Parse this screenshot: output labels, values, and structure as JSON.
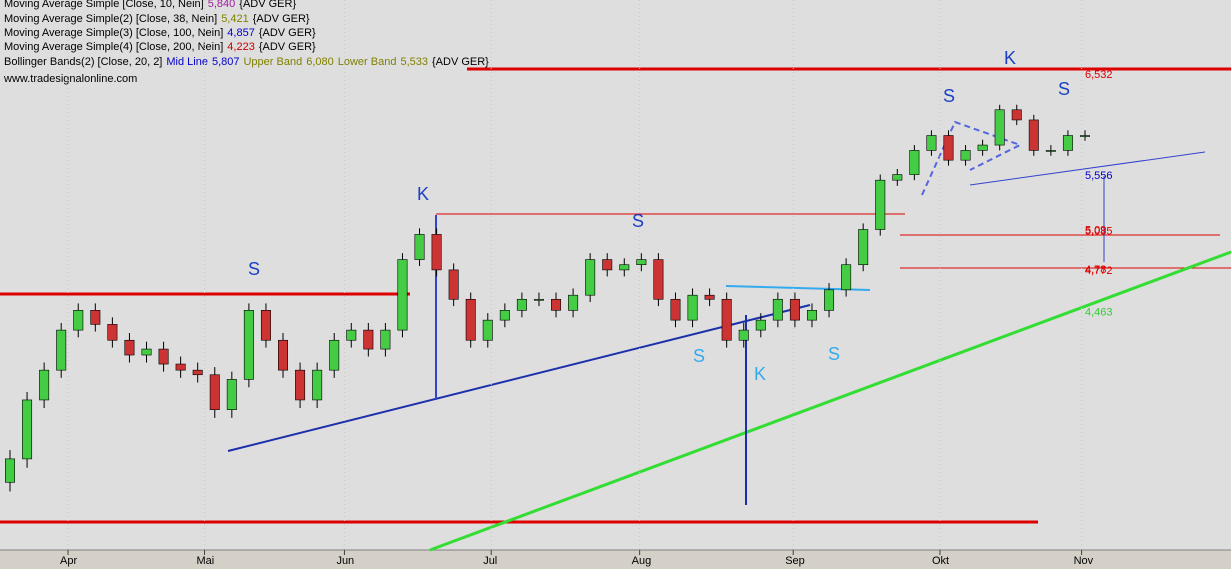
{
  "chart_data": {
    "type": "candlestick",
    "legend": [
      {
        "name": "Moving Average Simple [Close, 10, Nein]",
        "values": [
          {
            "value": 5.84,
            "label": "5,840",
            "color": "#a020a0"
          }
        ],
        "suffix": "{ADV GER}"
      },
      {
        "name": "Moving Average Simple(2) [Close, 38, Nein]",
        "values": [
          {
            "value": 5.421,
            "label": "5,421",
            "color": "#808000"
          }
        ],
        "suffix": "{ADV GER}"
      },
      {
        "name": "Moving Average Simple(3) [Close, 100, Nein]",
        "values": [
          {
            "value": 4.857,
            "label": "4,857",
            "color": "#0000cc"
          }
        ],
        "suffix": "{ADV GER}"
      },
      {
        "name": "Moving Average Simple(4) [Close, 200, Nein]",
        "values": [
          {
            "value": 4.223,
            "label": "4,223",
            "color": "#cc0000"
          }
        ],
        "suffix": "{ADV GER}"
      },
      {
        "name": "Bollinger Bands(2) [Close, 20, 2]",
        "values": [
          {
            "text": "Mid Line",
            "value": 5.807,
            "label": "5,807",
            "color": "#0000cc"
          },
          {
            "text": "Upper Band",
            "value": 6.08,
            "label": "6,080",
            "color": "#808000"
          },
          {
            "text": "Lower Band",
            "value": 5.533,
            "label": "5,533",
            "color": "#808000"
          }
        ],
        "suffix": "{ADV GER}"
      }
    ],
    "source": "www.tradesignalonline.com",
    "open": [
      3.4,
      3.53,
      3.88,
      4.07,
      4.34,
      4.48,
      4.38,
      4.27,
      4.17,
      4.21,
      4.11,
      4.07,
      4.04,
      3.82,
      4.01,
      4.48,
      4.27,
      4.07,
      3.88,
      4.07,
      4.27,
      4.34,
      4.21,
      4.34,
      4.86,
      5.06,
      4.78,
      4.56,
      4.27,
      4.41,
      4.48,
      4.56,
      4.56,
      4.48,
      4.59,
      4.86,
      4.78,
      4.82,
      4.86,
      4.56,
      4.41,
      4.59,
      4.56,
      4.27,
      4.34,
      4.41,
      4.56,
      4.41,
      4.48,
      4.63,
      4.82,
      5.1,
      5.52,
      5.57,
      5.79,
      5.93,
      5.7,
      5.79,
      5.84,
      6.18,
      6.08,
      5.79,
      5.79,
      5.93
    ],
    "high": [
      3.58,
      3.93,
      4.12,
      4.39,
      4.53,
      4.53,
      4.43,
      4.32,
      4.26,
      4.26,
      4.16,
      4.12,
      4.09,
      4.06,
      4.53,
      4.53,
      4.32,
      4.12,
      4.12,
      4.32,
      4.39,
      4.39,
      4.39,
      4.91,
      5.11,
      5.11,
      4.83,
      4.61,
      4.46,
      4.53,
      4.61,
      4.61,
      4.61,
      4.64,
      4.91,
      4.91,
      4.87,
      4.91,
      4.91,
      4.61,
      4.64,
      4.64,
      4.61,
      4.39,
      4.46,
      4.61,
      4.61,
      4.53,
      4.68,
      4.87,
      5.15,
      5.57,
      5.62,
      5.84,
      5.98,
      5.98,
      5.84,
      5.89,
      6.23,
      6.23,
      6.13,
      5.84,
      5.98,
      5.98
    ],
    "low": [
      3.35,
      3.48,
      3.83,
      4.02,
      4.29,
      4.33,
      4.22,
      4.12,
      4.12,
      4.06,
      4.02,
      3.99,
      3.77,
      3.77,
      3.96,
      4.22,
      4.02,
      3.83,
      3.83,
      4.02,
      4.22,
      4.16,
      4.16,
      4.29,
      4.81,
      4.73,
      4.51,
      4.22,
      4.22,
      4.36,
      4.43,
      4.51,
      4.43,
      4.43,
      4.54,
      4.73,
      4.73,
      4.77,
      4.51,
      4.36,
      4.36,
      4.51,
      4.22,
      4.22,
      4.29,
      4.36,
      4.36,
      4.36,
      4.43,
      4.58,
      4.77,
      5.05,
      5.47,
      5.52,
      5.74,
      5.65,
      5.65,
      5.74,
      5.79,
      6.03,
      5.74,
      5.74,
      5.74,
      5.88
    ],
    "close": [
      3.53,
      3.88,
      4.07,
      4.34,
      4.48,
      4.38,
      4.27,
      4.17,
      4.21,
      4.11,
      4.07,
      4.04,
      3.82,
      4.01,
      4.48,
      4.27,
      4.07,
      3.88,
      4.07,
      4.27,
      4.34,
      4.21,
      4.34,
      4.86,
      5.06,
      4.78,
      4.56,
      4.27,
      4.41,
      4.48,
      4.56,
      4.56,
      4.48,
      4.59,
      4.86,
      4.78,
      4.82,
      4.86,
      4.56,
      4.41,
      4.59,
      4.56,
      4.27,
      4.34,
      4.41,
      4.56,
      4.41,
      4.48,
      4.63,
      4.82,
      5.1,
      5.52,
      5.57,
      5.79,
      5.93,
      5.7,
      5.79,
      5.84,
      6.18,
      6.08,
      5.79,
      5.79,
      5.93,
      5.93
    ],
    "up_color": "#44cc44",
    "down_color": "#cc3333",
    "xlim": [
      0,
      63
    ],
    "xticks": [
      {
        "value": 3.4,
        "label": "Apr"
      },
      {
        "value": 11.4,
        "label": "Mai"
      },
      {
        "value": 19.6,
        "label": "Jun"
      },
      {
        "value": 28.2,
        "label": "Jul"
      },
      {
        "value": 36.9,
        "label": "Aug"
      },
      {
        "value": 45.9,
        "label": "Sep"
      },
      {
        "value": 54.5,
        "label": "Okt"
      },
      {
        "value": 62.8,
        "label": "Nov"
      }
    ],
    "ylim": [
      3.05,
      7.37
    ],
    "log_scale": true,
    "price_labels": [
      {
        "value": 6.532,
        "label": "6,532",
        "color": "#dd0000"
      },
      {
        "value": 5.556,
        "label": "5,556",
        "color": "#0000cc"
      },
      {
        "value": 5.09,
        "label": "5,09",
        "color": "#dd0000"
      },
      {
        "value": 5.085,
        "label": "5,085",
        "color": "#dd0000"
      },
      {
        "value": 4.78,
        "label": "4,78",
        "color": "#dd0000"
      },
      {
        "value": 4.772,
        "label": "4,772",
        "color": "#dd0000"
      },
      {
        "value": 4.463,
        "label": "4,463",
        "color": "#33cc33"
      }
    ],
    "pattern_labels": [
      {
        "label": "S",
        "color": "#1a3fc4"
      },
      {
        "label": "K",
        "color": "#1a3fc4"
      },
      {
        "label": "S",
        "color": "#1a3fc4"
      },
      {
        "label": "S",
        "color": "#33aaee"
      },
      {
        "label": "K",
        "color": "#33aaee"
      },
      {
        "label": "S",
        "color": "#33aaee"
      },
      {
        "label": "S",
        "color": "#1a3fc4"
      },
      {
        "label": "K",
        "color": "#1a3fc4"
      },
      {
        "label": "S",
        "color": "#1a3fc4"
      }
    ]
  }
}
